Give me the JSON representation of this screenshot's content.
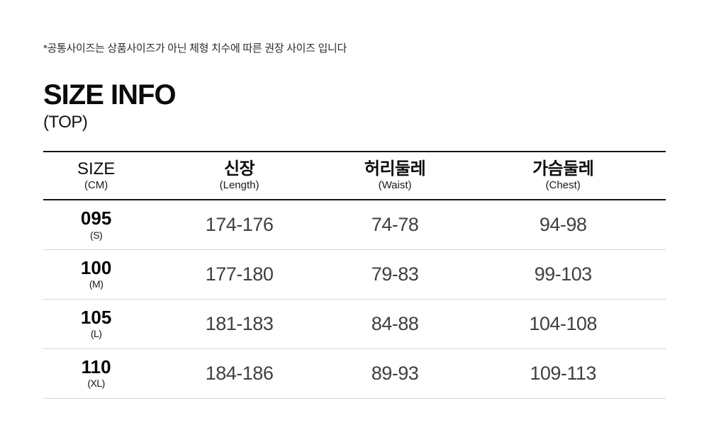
{
  "note": "*공통사이즈는 상품사이즈가 아닌 체형 치수에 따른 권장 사이즈 입니다",
  "title": "SIZE INFO",
  "subtitle": "(TOP)",
  "table": {
    "header": [
      {
        "label": "SIZE",
        "sub": "(CM)"
      },
      {
        "label": "신장",
        "sub": "(Length)"
      },
      {
        "label": "허리둘레",
        "sub": "(Waist)"
      },
      {
        "label": "가슴둘레",
        "sub": "(Chest)"
      }
    ],
    "rows": [
      {
        "size": "095",
        "grade": "(S)",
        "length": "174-176",
        "waist": "74-78",
        "chest": "94-98"
      },
      {
        "size": "100",
        "grade": "(M)",
        "length": "177-180",
        "waist": "79-83",
        "chest": "99-103"
      },
      {
        "size": "105",
        "grade": "(L)",
        "length": "181-183",
        "waist": "84-88",
        "chest": "104-108"
      },
      {
        "size": "110",
        "grade": "(XL)",
        "length": "184-186",
        "waist": "89-93",
        "chest": "109-113"
      }
    ]
  },
  "colors": {
    "border_dark": "#141414",
    "border_light": "#d7d7d7",
    "text_primary": "#0a0a0a",
    "text_values": "#404040"
  }
}
